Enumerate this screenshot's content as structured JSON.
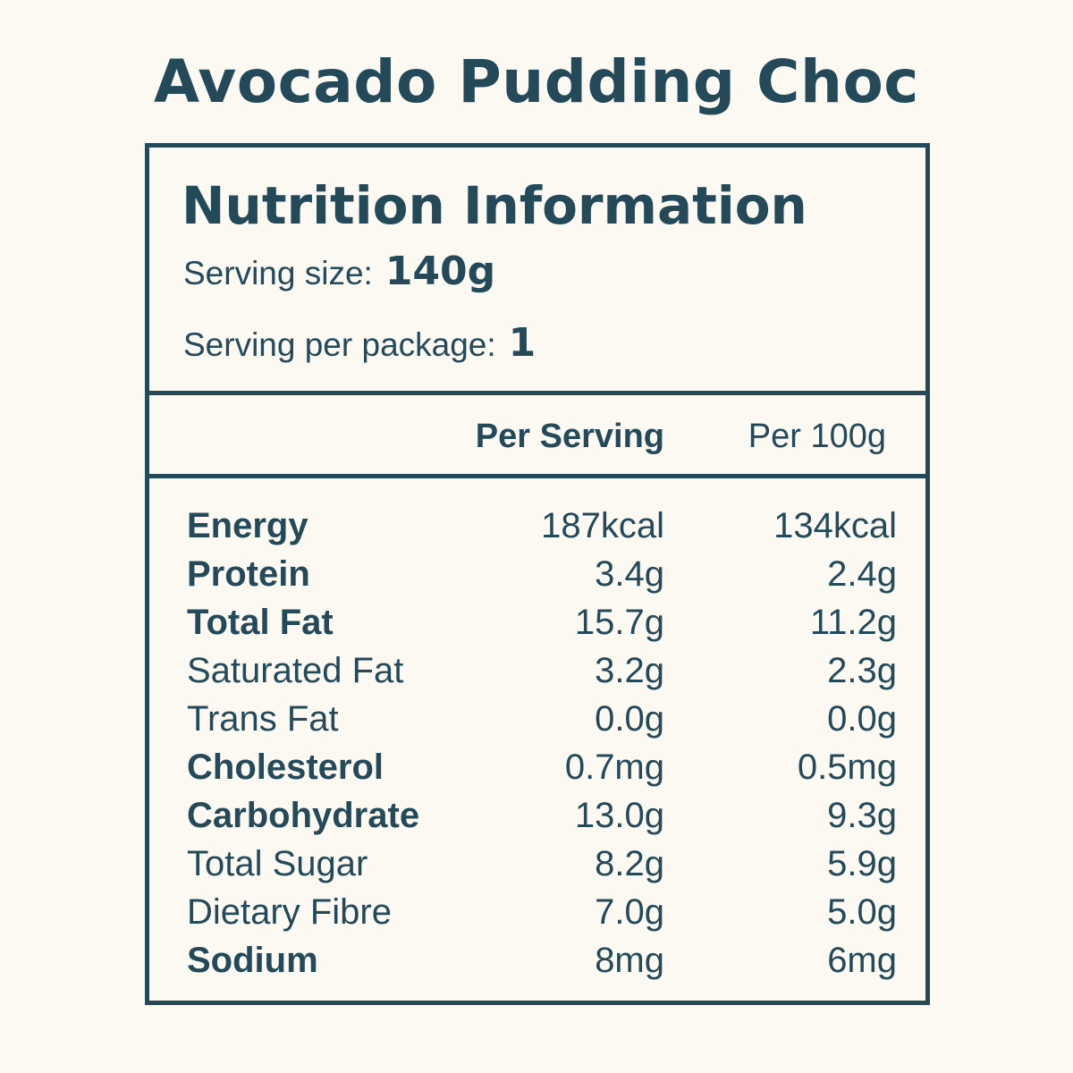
{
  "product": {
    "title": "Avocado Pudding Choc"
  },
  "panel": {
    "title": "Nutrition Information",
    "serving_size_label": "Serving size:",
    "serving_size_value": "140g",
    "serving_per_package_label": "Serving per package:",
    "serving_per_package_value": "1"
  },
  "columns": {
    "per_serving": "Per Serving",
    "per_100g": "Per 100g"
  },
  "rows": [
    {
      "name": "Energy",
      "bold": true,
      "per_serving": "187kcal",
      "per_100g": "134kcal"
    },
    {
      "name": "Protein",
      "bold": true,
      "per_serving": "3.4g",
      "per_100g": "2.4g"
    },
    {
      "name": "Total Fat",
      "bold": true,
      "per_serving": "15.7g",
      "per_100g": "11.2g"
    },
    {
      "name": "Saturated Fat",
      "bold": false,
      "per_serving": "3.2g",
      "per_100g": "2.3g"
    },
    {
      "name": "Trans Fat",
      "bold": false,
      "per_serving": "0.0g",
      "per_100g": "0.0g"
    },
    {
      "name": "Cholesterol",
      "bold": true,
      "per_serving": "0.7mg",
      "per_100g": "0.5mg"
    },
    {
      "name": "Carbohydrate",
      "bold": true,
      "per_serving": "13.0g",
      "per_100g": "9.3g"
    },
    {
      "name": "Total Sugar",
      "bold": false,
      "per_serving": "8.2g",
      "per_100g": "5.9g"
    },
    {
      "name": "Dietary Fibre",
      "bold": false,
      "per_serving": "7.0g",
      "per_100g": "5.0g"
    },
    {
      "name": "Sodium",
      "bold": true,
      "per_serving": "8mg",
      "per_100g": "6mg"
    }
  ],
  "colors": {
    "background": "#fcf9f3",
    "ink": "#244a5a"
  }
}
